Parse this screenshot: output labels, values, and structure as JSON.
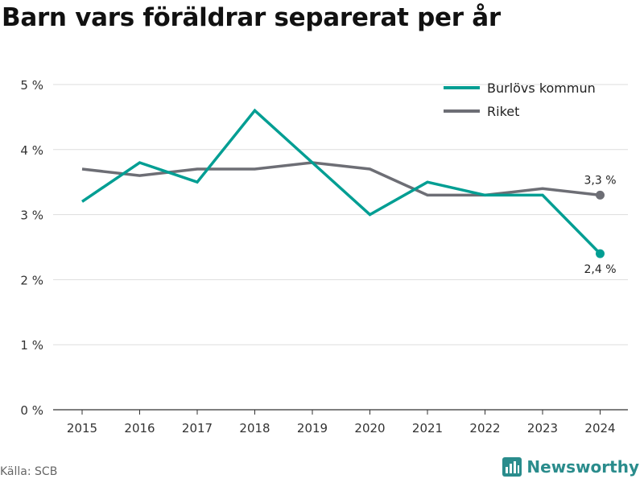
{
  "title": "Barn vars föräldrar separerat per år",
  "source": "Källa: SCB",
  "brand": {
    "name": "Newsworthy",
    "icon": "newsworthy-logo-icon"
  },
  "colors": {
    "burlov": "#009e93",
    "riket": "#6d6e75",
    "grid": "#dddddd",
    "axis": "#333333"
  },
  "chart_data": {
    "type": "line",
    "title": "Barn vars föräldrar separerat per år",
    "x": [
      "2015",
      "2016",
      "2017",
      "2018",
      "2019",
      "2020",
      "2021",
      "2022",
      "2023",
      "2024"
    ],
    "series": [
      {
        "name": "Burlövs kommun",
        "color": "#009e93",
        "values": [
          3.2,
          3.8,
          3.5,
          4.6,
          3.8,
          3.0,
          3.5,
          3.3,
          3.3,
          2.4
        ]
      },
      {
        "name": "Riket",
        "color": "#6d6e75",
        "values": [
          3.7,
          3.6,
          3.7,
          3.7,
          3.8,
          3.7,
          3.3,
          3.3,
          3.4,
          3.3
        ]
      }
    ],
    "ylim": [
      0,
      5
    ],
    "yticks": [
      0,
      1,
      2,
      3,
      4,
      5
    ],
    "ytick_labels": [
      "0 %",
      "1 %",
      "2 %",
      "3 %",
      "4 %",
      "5 %"
    ],
    "end_labels": [
      {
        "series": "Riket",
        "text": "3,3 %",
        "position": "above"
      },
      {
        "series": "Burlövs kommun",
        "text": "2,4 %",
        "position": "below"
      }
    ],
    "grid": true,
    "legend": "top-right",
    "xlabel": "",
    "ylabel": ""
  }
}
